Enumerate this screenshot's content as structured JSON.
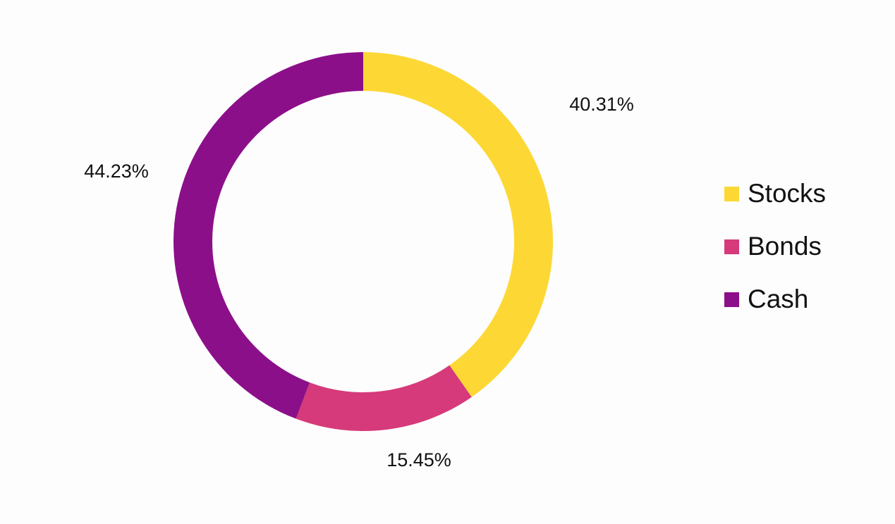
{
  "chart_data": {
    "type": "donut",
    "categories": [
      "Stocks",
      "Bonds",
      "Cash"
    ],
    "values": [
      40.31,
      15.45,
      44.23
    ],
    "value_labels": [
      "40.31%",
      "15.45%",
      "44.23%"
    ],
    "colors": [
      "#fdd835",
      "#d63a7a",
      "#8c0f8a"
    ],
    "legend": "right"
  }
}
